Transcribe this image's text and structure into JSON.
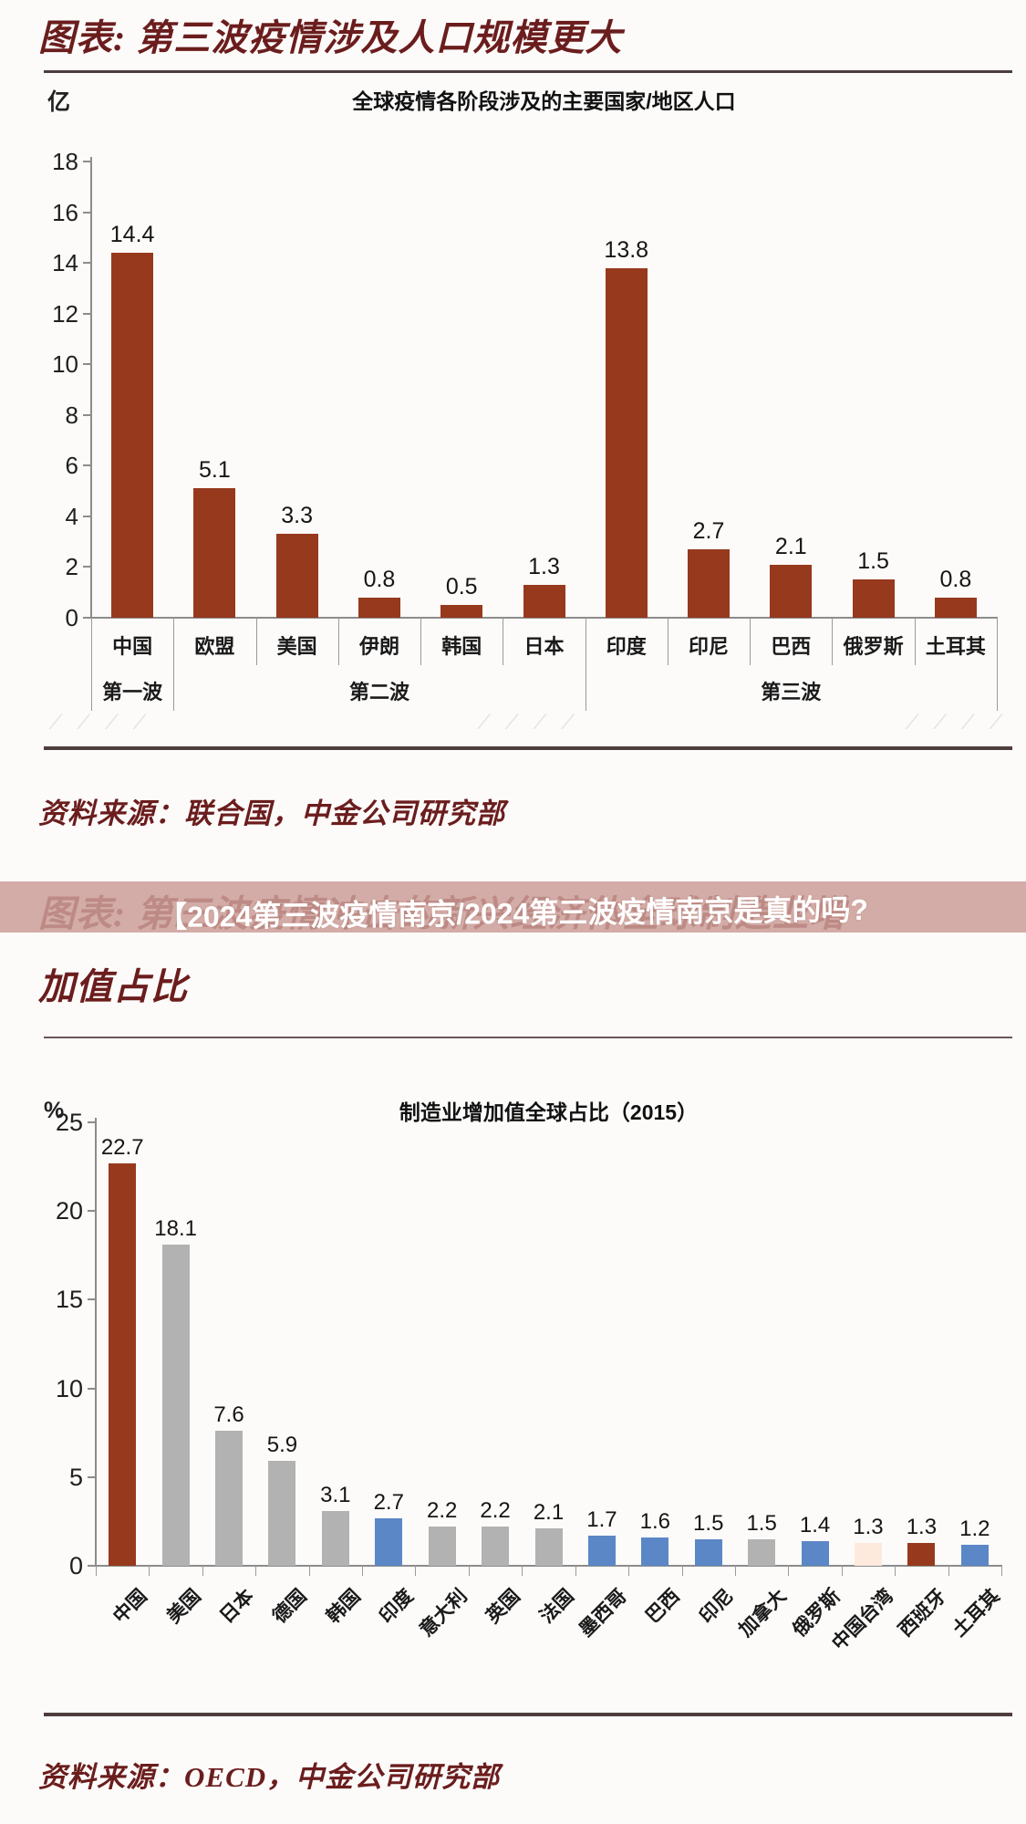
{
  "page": {
    "section1_title": "图表: 第三波疫情涉及人口规模更大",
    "section1_source": "资料来源：联合国，中金公司研究部",
    "overlay_text": "【2024第三波疫情南京/2024第三波疫情南京是真的吗?",
    "section2_title": "图表: 第三波疫情冲击的新兴经济体全球制造业增\n加值占比",
    "section2_source": "资料来源：OECD，中金公司研究部",
    "watermark_slashes_left": "∕ ∕ ∕ ∕",
    "watermark_slashes_mid": "∕ ∕ ∕ ∕",
    "watermark_slashes_right": "∕ ∕ ∕ ∕"
  },
  "colors": {
    "title_maroon": "#6b1d1d",
    "divider": "#4e3d3d",
    "bar_brick": "#97391d",
    "bar_gray": "#b2b2b2",
    "bar_blue": "#5b87c6",
    "bar_peach": "#fdeadc",
    "axis_gray": "#8c8c8c",
    "overlay_band": "rgba(203,158,152,0.85)",
    "overlay_text": "#ffffff"
  },
  "chart_data": [
    {
      "type": "bar",
      "title": "全球疫情各阶段涉及的主要国家/地区人口",
      "unit": "亿",
      "categories": [
        "中国",
        "欧盟",
        "美国",
        "伊朗",
        "韩国",
        "日本",
        "印度",
        "印尼",
        "巴西",
        "俄罗斯",
        "土耳其"
      ],
      "values": [
        14.4,
        5.1,
        3.3,
        0.8,
        0.5,
        1.3,
        13.8,
        2.7,
        2.1,
        1.5,
        0.8
      ],
      "bar_color_key": "bar_brick",
      "groups": [
        {
          "label": "第一波",
          "from": 0,
          "to": 1
        },
        {
          "label": "第二波",
          "from": 1,
          "to": 6
        },
        {
          "label": "第三波",
          "from": 6,
          "to": 11
        }
      ],
      "ylim": [
        0,
        18
      ],
      "ytick_step": 2,
      "grid": false,
      "legend": "none",
      "value_labels": true
    },
    {
      "type": "bar",
      "title": "制造业增加值全球占比（2015）",
      "unit": "%",
      "categories": [
        "中国",
        "美国",
        "日本",
        "德国",
        "韩国",
        "印度",
        "意大利",
        "英国",
        "法国",
        "墨西哥",
        "巴西",
        "印尼",
        "加拿大",
        "俄罗斯",
        "中国台湾",
        "西班牙",
        "土耳其"
      ],
      "values": [
        22.7,
        18.1,
        7.6,
        5.9,
        3.1,
        2.7,
        2.2,
        2.2,
        2.1,
        1.7,
        1.6,
        1.5,
        1.5,
        1.4,
        1.3,
        1.3,
        1.2
      ],
      "bar_color_keys": [
        "bar_brick",
        "bar_gray",
        "bar_gray",
        "bar_gray",
        "bar_gray",
        "bar_blue",
        "bar_gray",
        "bar_gray",
        "bar_gray",
        "bar_blue",
        "bar_blue",
        "bar_blue",
        "bar_gray",
        "bar_blue",
        "bar_peach",
        "bar_brick",
        "bar_blue"
      ],
      "ylim": [
        0,
        25
      ],
      "ytick_step": 5,
      "grid": false,
      "legend": "none",
      "value_labels": true,
      "xlabel_rotation_deg": -45
    }
  ]
}
